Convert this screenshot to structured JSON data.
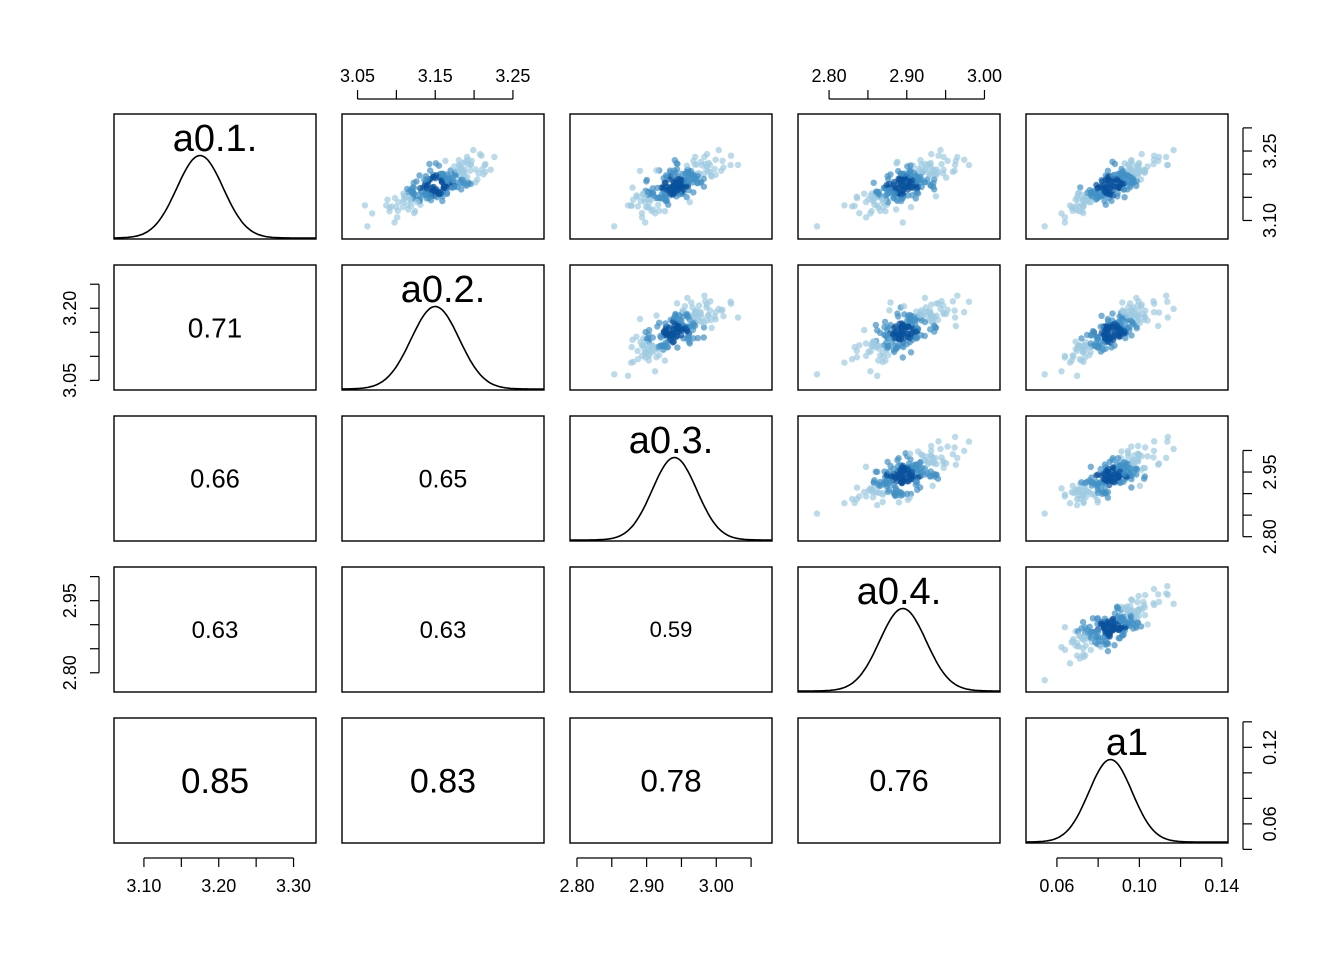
{
  "chart_data": {
    "type": "scatter",
    "variables": [
      "a0.1.",
      "a0.2.",
      "a0.3.",
      "a0.4.",
      "a1"
    ],
    "ranges": [
      [
        3.06,
        3.33
      ],
      [
        3.03,
        3.29
      ],
      [
        2.79,
        3.08
      ],
      [
        2.76,
        3.02
      ],
      [
        0.045,
        0.143
      ]
    ],
    "density_peaks": [
      3.175,
      3.15,
      2.94,
      2.895,
      0.086
    ],
    "density_sds": [
      0.031,
      0.031,
      0.032,
      0.03,
      0.0105
    ],
    "correlations": [
      {
        "row": 1,
        "col": 0,
        "label": "0.71"
      },
      {
        "row": 2,
        "col": 0,
        "label": "0.66"
      },
      {
        "row": 2,
        "col": 1,
        "label": "0.65"
      },
      {
        "row": 3,
        "col": 0,
        "label": "0.63"
      },
      {
        "row": 3,
        "col": 1,
        "label": "0.63"
      },
      {
        "row": 3,
        "col": 2,
        "label": "0.59"
      },
      {
        "row": 4,
        "col": 0,
        "label": "0.85"
      },
      {
        "row": 4,
        "col": 1,
        "label": "0.83"
      },
      {
        "row": 4,
        "col": 2,
        "label": "0.78"
      },
      {
        "row": 4,
        "col": 3,
        "label": "0.76"
      }
    ],
    "axes": {
      "top": [
        {
          "col": 1,
          "ticks": [
            3.05,
            3.1,
            3.15,
            3.2,
            3.25
          ],
          "labels": [
            "3.05",
            "",
            "3.15",
            "",
            "3.25"
          ]
        },
        {
          "col": 3,
          "ticks": [
            2.8,
            2.85,
            2.9,
            2.95,
            3.0
          ],
          "labels": [
            "2.80",
            "",
            "2.90",
            "",
            "3.00"
          ]
        }
      ],
      "bottom": [
        {
          "col": 0,
          "ticks": [
            3.1,
            3.15,
            3.2,
            3.25,
            3.3
          ],
          "labels": [
            "3.10",
            "",
            "3.20",
            "",
            "3.30"
          ]
        },
        {
          "col": 2,
          "ticks": [
            2.8,
            2.85,
            2.9,
            2.95,
            3.0,
            3.05
          ],
          "labels": [
            "2.80",
            "",
            "2.90",
            "",
            "3.00",
            ""
          ]
        },
        {
          "col": 4,
          "ticks": [
            0.06,
            0.08,
            0.1,
            0.12,
            0.14
          ],
          "labels": [
            "0.06",
            "",
            "0.10",
            "",
            "0.14"
          ]
        }
      ],
      "left": [
        {
          "row": 1,
          "ticks": [
            3.05,
            3.1,
            3.15,
            3.2,
            3.25
          ],
          "labels": [
            "3.05",
            "",
            "",
            "3.20",
            ""
          ]
        },
        {
          "row": 3,
          "ticks": [
            2.8,
            2.85,
            2.9,
            2.95,
            3.0
          ],
          "labels": [
            "2.80",
            "",
            "",
            "2.95",
            ""
          ]
        }
      ],
      "right": [
        {
          "row": 0,
          "ticks": [
            3.1,
            3.15,
            3.2,
            3.25,
            3.3
          ],
          "labels": [
            "3.10",
            "",
            "",
            "3.25",
            ""
          ]
        },
        {
          "row": 2,
          "ticks": [
            2.8,
            2.85,
            2.9,
            2.95,
            3.0
          ],
          "labels": [
            "2.80",
            "",
            "",
            "2.95",
            ""
          ]
        },
        {
          "row": 4,
          "ticks": [
            0.04,
            0.06,
            0.08,
            0.1,
            0.12,
            0.14
          ],
          "labels": [
            "",
            "0.06",
            "",
            "",
            "0.12",
            ""
          ]
        }
      ]
    },
    "n_points": 200,
    "colors": {
      "point_light": "#9ecae1",
      "point_mid": "#4292c6",
      "point_dark": "#08519c",
      "line": "#000000",
      "frame": "#000000"
    },
    "grid": false,
    "legend": "none"
  }
}
